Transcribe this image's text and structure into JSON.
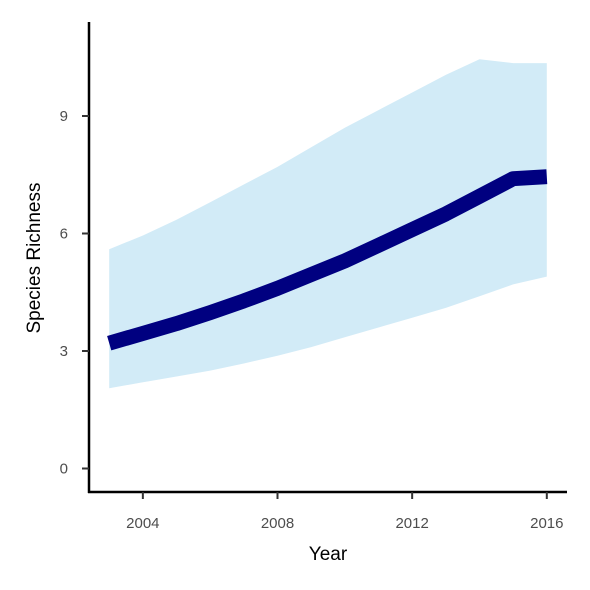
{
  "chart_data": {
    "type": "line",
    "title": "",
    "xlabel": "Year",
    "ylabel": "Species Richness",
    "xlim": [
      2002.4,
      2016.6
    ],
    "ylim": [
      -0.6,
      11.4
    ],
    "x_ticks": [
      2004,
      2008,
      2012,
      2016
    ],
    "y_ticks": [
      0,
      3,
      6,
      9
    ],
    "grid": false,
    "legend": "none",
    "series": [
      {
        "x": [
          2003,
          2004,
          2005,
          2006,
          2007,
          2008,
          2009,
          2010,
          2011,
          2012,
          2013,
          2014,
          2015,
          2016
        ],
        "values": [
          3.2,
          3.45,
          3.7,
          3.98,
          4.28,
          4.6,
          4.95,
          5.3,
          5.7,
          6.1,
          6.5,
          6.95,
          7.4,
          7.45
        ],
        "lower": [
          2.05,
          2.2,
          2.35,
          2.5,
          2.68,
          2.88,
          3.1,
          3.35,
          3.6,
          3.85,
          4.1,
          4.4,
          4.7,
          4.9
        ],
        "upper": [
          5.6,
          5.95,
          6.35,
          6.8,
          7.25,
          7.7,
          8.2,
          8.7,
          9.15,
          9.6,
          10.05,
          10.45,
          10.35,
          10.35
        ]
      }
    ],
    "colors": {
      "line": "#000080",
      "band": "#d2ebf7",
      "axis": "#000000",
      "tick": "#333333",
      "tick_label": "#4d4d4d"
    }
  }
}
